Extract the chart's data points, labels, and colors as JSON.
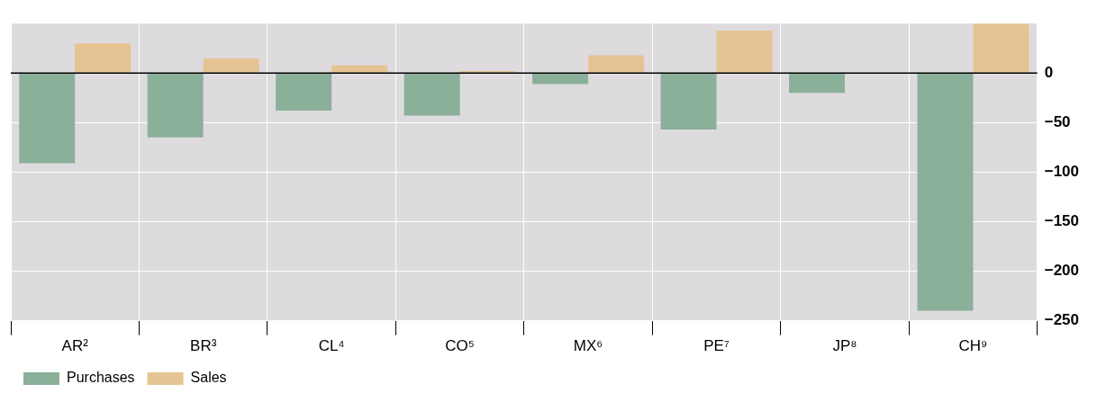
{
  "chart_data": {
    "type": "bar",
    "categories": [
      "AR²",
      "BR³",
      "CL⁴",
      "CO⁵",
      "MX⁶",
      "PE⁷",
      "JP⁸",
      "CH⁹"
    ],
    "series": [
      {
        "name": "Purchases",
        "color": "#8bb09a",
        "values": [
          -91,
          -65,
          -38,
          -43,
          -11,
          -57,
          -20,
          -240
        ]
      },
      {
        "name": "Sales",
        "color": "#e6c393",
        "values": [
          30,
          15,
          8,
          2,
          18,
          43,
          null,
          50
        ]
      }
    ],
    "ylim": [
      -250,
      50
    ],
    "yticks": [
      -250,
      -200,
      -150,
      -100,
      -50,
      0
    ],
    "grid": true,
    "legend": "bottom left"
  }
}
